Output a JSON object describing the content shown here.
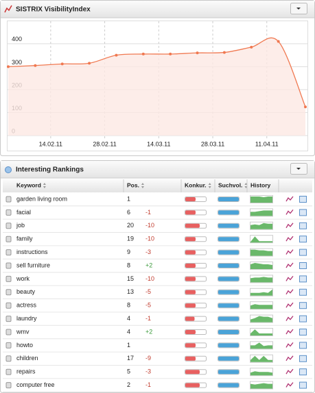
{
  "header": {
    "title": "SISTRIX VisibilityIndex"
  },
  "chart_data": {
    "type": "line",
    "color": "#f07850",
    "fill": "#fde8e4",
    "x": [
      "2011-02-03",
      "2011-02-10",
      "2011-02-17",
      "2011-02-24",
      "2011-03-03",
      "2011-03-10",
      "2011-03-17",
      "2011-03-24",
      "2011-03-31",
      "2011-04-07",
      "2011-04-14",
      "2011-04-21"
    ],
    "values": [
      300,
      305,
      312,
      315,
      350,
      355,
      355,
      360,
      362,
      385,
      410,
      125
    ],
    "xlim": [
      "2011-02-03",
      "2011-04-21"
    ],
    "xticks": [
      {
        "value": "2011-02-14",
        "label": "14.02.11"
      },
      {
        "value": "2011-02-28",
        "label": "28.02.11"
      },
      {
        "value": "2011-03-14",
        "label": "14.03.11"
      },
      {
        "value": "2011-03-28",
        "label": "28.03.11"
      },
      {
        "value": "2011-04-11",
        "label": "11.04.11"
      }
    ],
    "ylim": [
      0,
      480
    ],
    "yticks": [
      0,
      100,
      200,
      300,
      400
    ],
    "grid": true
  },
  "rankings": {
    "title": "Interesting Rankings",
    "columns": [
      "Keyword",
      "Pos.",
      "Konkur.",
      "Suchvol.",
      "History"
    ],
    "rows": [
      {
        "keyword": "garden living room",
        "pos": "1",
        "change": null,
        "konkur": 50,
        "suchvol": 100,
        "history": [
          9,
          9,
          9,
          8,
          9,
          9
        ]
      },
      {
        "keyword": "facial",
        "pos": "6",
        "change": "-1",
        "konkur": 50,
        "suchvol": 100,
        "history": [
          6,
          6,
          7,
          8,
          8,
          8
        ]
      },
      {
        "keyword": "job",
        "pos": "20",
        "change": "-10",
        "konkur": 70,
        "suchvol": 100,
        "history": [
          6,
          7,
          6,
          9,
          8,
          8
        ]
      },
      {
        "keyword": "family",
        "pos": "19",
        "change": "-10",
        "konkur": 50,
        "suchvol": 100,
        "history": [
          1,
          9,
          2,
          2,
          2,
          2
        ]
      },
      {
        "keyword": "instructions",
        "pos": "9",
        "change": "-3",
        "konkur": 50,
        "suchvol": 100,
        "history": [
          9,
          9,
          8,
          8,
          7,
          7
        ]
      },
      {
        "keyword": "sell furniture",
        "pos": "8",
        "change": "+2",
        "konkur": 50,
        "suchvol": 100,
        "history": [
          7,
          9,
          8,
          7,
          7,
          6
        ]
      },
      {
        "keyword": "work",
        "pos": "15",
        "change": "-10",
        "konkur": 50,
        "suchvol": 100,
        "history": [
          6,
          7,
          7,
          8,
          7,
          7
        ]
      },
      {
        "keyword": "beauty",
        "pos": "13",
        "change": "-5",
        "konkur": 50,
        "suchvol": 100,
        "history": [
          4,
          4,
          4,
          5,
          4,
          9
        ]
      },
      {
        "keyword": "actress",
        "pos": "8",
        "change": "-5",
        "konkur": 50,
        "suchvol": 100,
        "history": [
          5,
          7,
          6,
          6,
          6,
          6
        ]
      },
      {
        "keyword": "laundry",
        "pos": "4",
        "change": "-1",
        "konkur": 45,
        "suchvol": 100,
        "history": [
          4,
          6,
          9,
          8,
          8,
          6
        ]
      },
      {
        "keyword": "wmv",
        "pos": "4",
        "change": "+2",
        "konkur": 50,
        "suchvol": 100,
        "history": [
          3,
          9,
          3,
          3,
          3,
          3
        ]
      },
      {
        "keyword": "howto",
        "pos": "1",
        "change": null,
        "konkur": 50,
        "suchvol": 100,
        "history": [
          5,
          5,
          9,
          4,
          5,
          5
        ]
      },
      {
        "keyword": "children",
        "pos": "17",
        "change": "-9",
        "konkur": 50,
        "suchvol": 100,
        "history": [
          3,
          9,
          3,
          9,
          3,
          3
        ]
      },
      {
        "keyword": "repairs",
        "pos": "5",
        "change": "-3",
        "konkur": 70,
        "suchvol": 100,
        "history": [
          4,
          6,
          5,
          5,
          5,
          4
        ]
      },
      {
        "keyword": "computer free",
        "pos": "2",
        "change": "-1",
        "konkur": 70,
        "suchvol": 100,
        "history": [
          7,
          6,
          7,
          8,
          7,
          7
        ]
      }
    ]
  }
}
